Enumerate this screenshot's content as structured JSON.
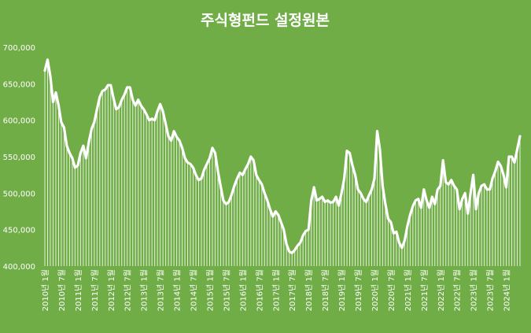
{
  "chart_data": {
    "type": "line",
    "title": "주식형펀드 설정원본",
    "xlabel": "",
    "ylabel": "",
    "ylim": [
      400000,
      700000
    ],
    "y_ticks": [
      "400,000",
      "450,000",
      "500,000",
      "550,000",
      "600,000",
      "650,000",
      "700,000"
    ],
    "x_tick_labels": [
      "2010년 1월",
      "2010년 7월",
      "2011년 1월",
      "2011년 7월",
      "2012년 1월",
      "2012년 7월",
      "2013년 1월",
      "2013년 7월",
      "2014년 1월",
      "2014년 7월",
      "2015년 1월",
      "2015년 7월",
      "2016년 1월",
      "2016년 7월",
      "2017년 1월",
      "2017년 7월",
      "2018년 1월",
      "2018년 7월",
      "2019년 1월",
      "2019년 7월",
      "2020년 1월",
      "2020년 7월",
      "2021년 1월",
      "2021년 7월",
      "2022년 1월",
      "2022년 7월",
      "2023년 1월",
      "2023년 7월",
      "2024년 1월"
    ],
    "grid": false,
    "legend": "none",
    "colors": {
      "background": "#70AD47",
      "line": "#ffffff",
      "text": "#ffffff"
    },
    "series": [
      {
        "values": [
          668000,
          683000,
          660000,
          625000,
          638000,
          620000,
          597000,
          590000,
          565000,
          555000,
          548000,
          535000,
          538000,
          555000,
          565000,
          548000,
          570000,
          588000,
          597000,
          615000,
          632000,
          640000,
          642000,
          648000,
          648000,
          630000,
          615000,
          618000,
          628000,
          635000,
          645000,
          645000,
          628000,
          620000,
          628000,
          620000,
          615000,
          608000,
          600000,
          602000,
          600000,
          612000,
          622000,
          612000,
          595000,
          578000,
          572000,
          585000,
          577000,
          572000,
          562000,
          548000,
          542000,
          540000,
          535000,
          525000,
          518000,
          520000,
          532000,
          540000,
          548000,
          562000,
          555000,
          530000,
          510000,
          490000,
          485000,
          488000,
          498000,
          510000,
          520000,
          528000,
          525000,
          533000,
          540000,
          550000,
          545000,
          525000,
          518000,
          512000,
          500000,
          490000,
          478000,
          468000,
          475000,
          470000,
          460000,
          450000,
          430000,
          420000,
          418000,
          422000,
          428000,
          432000,
          442000,
          448000,
          450000,
          490000,
          508000,
          490000,
          492000,
          495000,
          488000,
          490000,
          487000,
          488000,
          495000,
          483000,
          500000,
          520000,
          558000,
          555000,
          538000,
          525000,
          505000,
          500000,
          492000,
          488000,
          497000,
          505000,
          520000,
          585000,
          560000,
          510000,
          485000,
          465000,
          460000,
          445000,
          447000,
          432000,
          425000,
          435000,
          455000,
          470000,
          482000,
          490000,
          492000,
          480000,
          505000,
          490000,
          480000,
          495000,
          485000,
          505000,
          510000,
          545000,
          515000,
          512000,
          518000,
          510000,
          505000,
          478000,
          492000,
          500000,
          472000,
          500000,
          525000,
          478000,
          500000,
          510000,
          512000,
          505000,
          505000,
          520000,
          530000,
          543000,
          537000,
          525000,
          508000,
          550000,
          550000,
          542000,
          560000,
          578000
        ]
      }
    ]
  }
}
